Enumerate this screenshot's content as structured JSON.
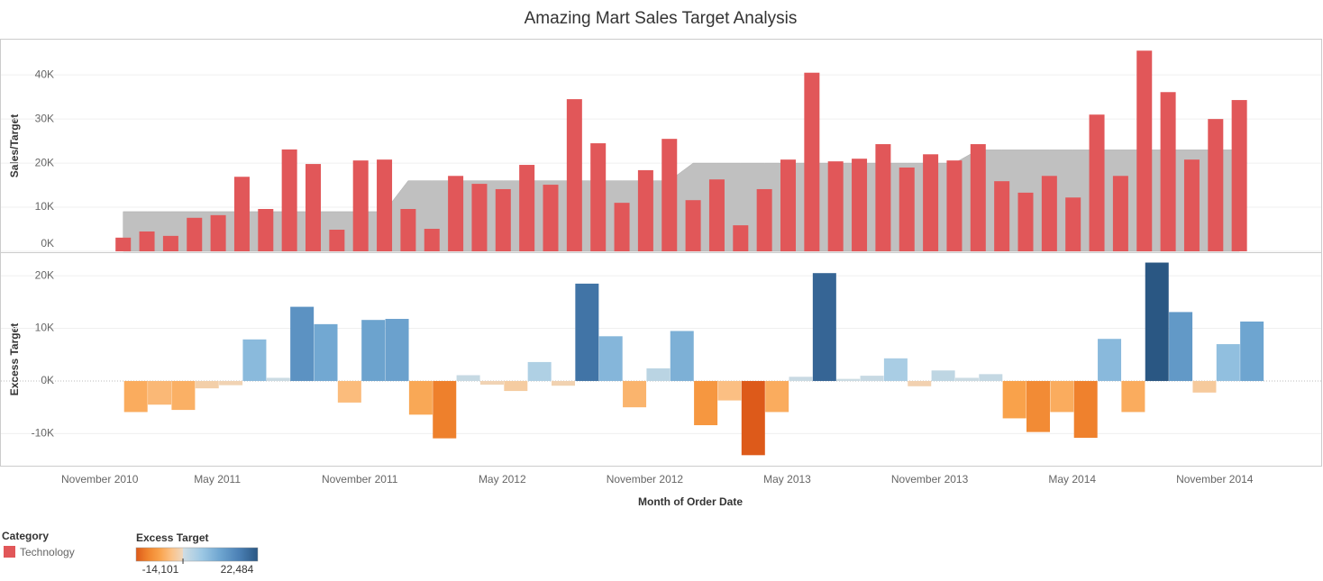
{
  "title": "Amazing Mart Sales Target Analysis",
  "chart_data": [
    {
      "type": "bar",
      "ylabel": "Sales/Target",
      "legend_title": "Category",
      "series": [
        {
          "name": "Technology",
          "color": "#e15759",
          "values": [
            null,
            null,
            3100,
            4500,
            3500,
            7600,
            8200,
            16900,
            9600,
            23100,
            19800,
            4900,
            20600,
            20800,
            9600,
            5100,
            17100,
            15300,
            14100,
            19600,
            15100,
            34500,
            24500,
            11000,
            18400,
            25500,
            11600,
            16300,
            5900,
            14100,
            20800,
            40500,
            20400,
            21000,
            24300,
            19000,
            22000,
            20600,
            24300,
            15900,
            13300,
            17100,
            12200,
            31000,
            17100,
            45500,
            36100,
            20800,
            30000,
            34300
          ]
        }
      ],
      "target": {
        "color": "#c0c0c0",
        "values": [
          null,
          null,
          9000,
          9000,
          9000,
          9000,
          9000,
          9000,
          9000,
          9000,
          9000,
          9000,
          9000,
          9000,
          16000,
          16000,
          16000,
          16000,
          16000,
          16000,
          16000,
          16000,
          16000,
          16000,
          16000,
          16000,
          20000,
          20000,
          20000,
          20000,
          20000,
          20000,
          20000,
          20000,
          20000,
          20000,
          20000,
          20000,
          23000,
          23000,
          23000,
          23000,
          23000,
          23000,
          23000,
          23000,
          23000,
          23000,
          23000,
          23000
        ]
      },
      "ylim": [
        0,
        48000
      ],
      "yticks": [
        {
          "value": 0,
          "label": "0K"
        },
        {
          "value": 10000,
          "label": "10K"
        },
        {
          "value": 20000,
          "label": "20K"
        },
        {
          "value": 30000,
          "label": "30K"
        },
        {
          "value": 40000,
          "label": "40K"
        }
      ],
      "grid": true
    },
    {
      "type": "bar",
      "ylabel": "Excess Target",
      "xlabel": "Month of Order Date",
      "color_legend_title": "Excess Target",
      "categories": [
        "November 2010",
        null,
        null,
        null,
        null,
        null,
        "May 2011",
        null,
        null,
        null,
        null,
        null,
        "November 2011",
        null,
        null,
        null,
        null,
        null,
        "May 2012",
        null,
        null,
        null,
        null,
        null,
        "November 2012",
        null,
        null,
        null,
        null,
        null,
        "May 2013",
        null,
        null,
        null,
        null,
        null,
        "November 2013",
        null,
        null,
        null,
        null,
        null,
        "May 2014",
        null,
        null,
        null,
        null,
        null,
        "November 2014",
        null
      ],
      "values": [
        null,
        null,
        -5900,
        -4500,
        -5500,
        -1400,
        -800,
        7900,
        600,
        14100,
        10800,
        -4100,
        11600,
        11800,
        -6400,
        -10900,
        1100,
        -700,
        -1900,
        3600,
        -900,
        18500,
        8500,
        -5000,
        2400,
        9500,
        -8400,
        -3700,
        -14100,
        -5900,
        800,
        20500,
        400,
        1000,
        4300,
        -1000,
        2000,
        600,
        1300,
        -7100,
        -9700,
        -5900,
        -10800,
        8000,
        -5900,
        22500,
        13100,
        -2200,
        7000,
        11300
      ],
      "colorscale": {
        "min": {
          "value": -14101,
          "label": "-14,101"
        },
        "max": {
          "value": 22484,
          "label": "22,484"
        },
        "negative": [
          "#dd5a1a",
          "#f0842e",
          "#f9a24b",
          "#fbc186",
          "#eed8c0"
        ],
        "positive": [
          "#d0dde3",
          "#9dc8e4",
          "#6ea5d0",
          "#4b80b5",
          "#2a5783"
        ]
      },
      "ylim": [
        -16100,
        24300
      ],
      "yticks": [
        {
          "value": -10000,
          "label": "-10K"
        },
        {
          "value": 0,
          "label": "0K"
        },
        {
          "value": 10000,
          "label": "10K"
        },
        {
          "value": 20000,
          "label": "20K"
        }
      ],
      "grid": true
    }
  ]
}
